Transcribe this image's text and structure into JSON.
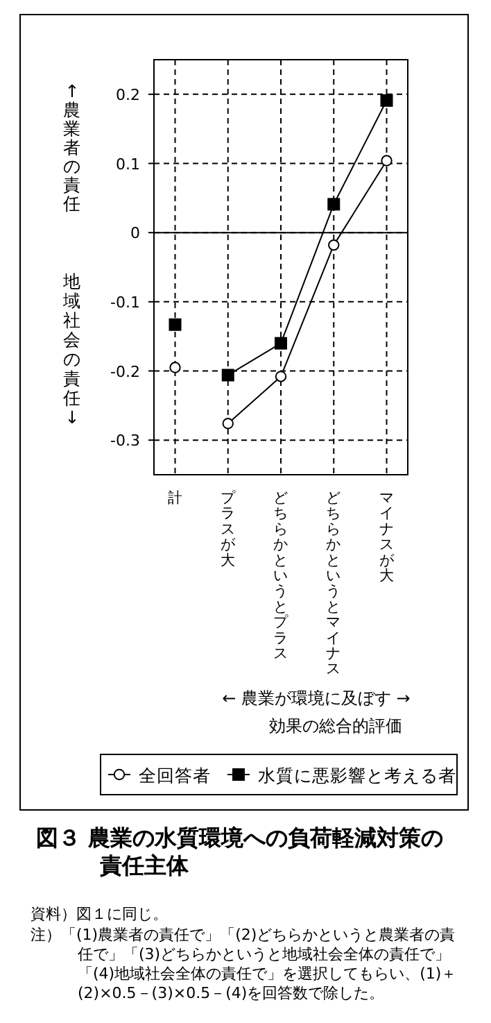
{
  "chart_data": {
    "type": "line",
    "title": "図３ 農業の水質環境への負荷軽減対策の責任主体",
    "ylabel": "↑農業者の責任",
    "categories": [
      "計",
      "プラスが大",
      "どちらかというとプラス",
      "どちらかというとマイナス",
      "マイナスが大"
    ],
    "series": [
      {
        "name": "全回答者",
        "color": "#000000",
        "marker": "circle",
        "values": [
          null,
          -0.276,
          -0.208,
          -0.018,
          0.104
        ]
      },
      {
        "name": "水質に悪影響と考える者",
        "color": "#000000",
        "marker": "square",
        "values": [
          null,
          -0.206,
          -0.16,
          0.041,
          0.191
        ]
      },
      {
        "type": "scatter",
        "color": "#000000",
        "marker": "circle",
        "x": [
          "計"
        ],
        "values": [
          -0.195
        ]
      },
      {
        "type": "scatter",
        "color": "#000000",
        "marker": "square",
        "x": [
          "計"
        ],
        "values": [
          -0.133
        ]
      }
    ],
    "ylim": [
      -0.35,
      0.25
    ],
    "yticks": [
      -0.3,
      -0.2,
      -0.1,
      0,
      0.1,
      0.2
    ],
    "grid": true,
    "legend": "bottom",
    "ref_lines": [
      {
        "axis": "y",
        "value": 0
      }
    ],
    "annotations": [
      "地域社会の責任↓",
      "← 農業が環境に及ぼす →\n効果の総合的評価",
      "資料）図１に同じ。",
      "注）「(1)農業者の責任で」「(2)どちらかというと農業者の責任で」「(3)どちらかというと地域社会全体の責任で」「(4)地域社会全体の責任で」を選択してもらい、(1)＋(2)×0.5－(3)×0.5－(4)を回答数で除した。"
    ]
  }
}
